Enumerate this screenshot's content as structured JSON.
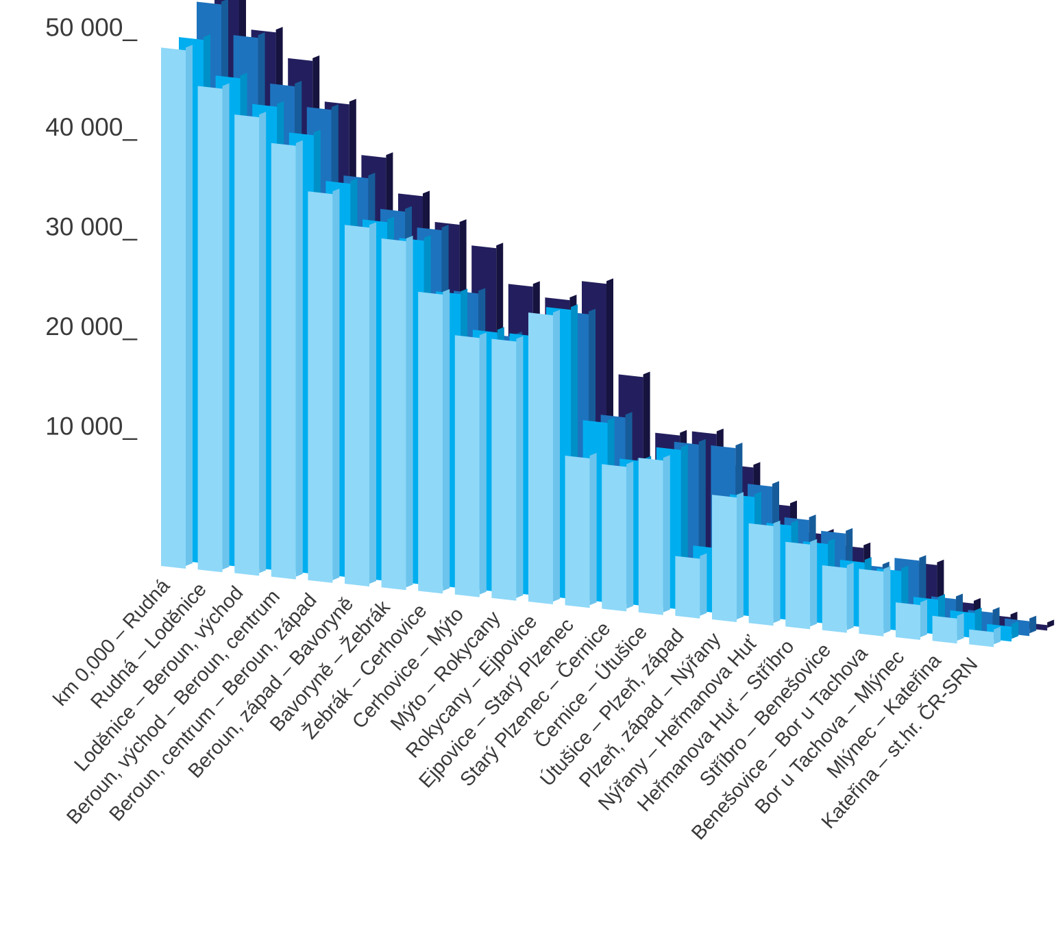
{
  "chart_data": {
    "type": "bar",
    "title": "",
    "xlabel": "",
    "ylabel": "",
    "ylim": [
      0,
      55000
    ],
    "yticks": [
      {
        "value": 10000,
        "label": "10 000_"
      },
      {
        "value": 20000,
        "label": "20 000_"
      },
      {
        "value": 30000,
        "label": "30 000_"
      },
      {
        "value": 40000,
        "label": "40 000_"
      },
      {
        "value": 50000,
        "label": "50 000_"
      }
    ],
    "grid": false,
    "legend": "none",
    "categories": [
      "km 0,000 – Rudná",
      "Rudná – Loděnice",
      "Loděnice – Beroun, východ",
      "Beroun, východ – Beroun, centrum",
      "Beroun, centrum – Beroun, západ",
      "Beroun, západ – Bavoryně",
      "Bavoryně – Žebrák",
      "Žebrák – Cerhovice",
      "Cerhovice – Mýto",
      "Mýto – Rokycany",
      "Rokycany – Ejpovice",
      "Ejpovice – Starý Plzenec",
      "Starý Plzenec – Černice",
      "Černice – Útušice",
      "Útušice – Plzeň, západ",
      "Plzeň, západ – Nýřany",
      "Nýřany – Heřmanova Huť",
      "Heřmanova Huť – Stříbro",
      "Stříbro – Benešovice",
      "Benešovice – Bor u Tachova",
      "Bor u Tachova – Mlýnec",
      "Mlýnec – Kateřina",
      "Kateřina – st.hr. ČR-SRN"
    ],
    "series": [
      {
        "color": "#8fd8f8",
        "values": [
          48000,
          44500,
          42000,
          39500,
          35000,
          32000,
          31000,
          26000,
          22000,
          22000,
          25000,
          11000,
          10500,
          11500,
          2000,
          8500,
          6000,
          4500,
          2500,
          2500,
          -500,
          -1500,
          -2500
        ]
      },
      {
        "color": "#00aeef",
        "values": [
          48500,
          45000,
          42500,
          40000,
          35500,
          32000,
          30500,
          25500,
          22000,
          22000,
          25000,
          14000,
          10500,
          12000,
          2500,
          8000,
          5500,
          4000,
          2500,
          2000,
          -500,
          -1500,
          -2500
        ]
      },
      {
        "color": "#1e73be",
        "values": [
          51500,
          48500,
          44000,
          42000,
          35500,
          32500,
          31000,
          25000,
          21000,
          21000,
          24000,
          14000,
          10000,
          12000,
          12000,
          8500,
          5500,
          4500,
          1500,
          2500,
          -1000,
          -2000,
          -2500
        ]
      },
      {
        "color": "#231f5e",
        "values": [
          53000,
          48500,
          46000,
          42000,
          37000,
          33500,
          31000,
          29000,
          25500,
          24500,
          26500,
          17500,
          12000,
          12500,
          9500,
          6000,
          3500,
          2500,
          0,
          1500,
          -2000,
          -3000,
          -3500
        ]
      }
    ]
  }
}
